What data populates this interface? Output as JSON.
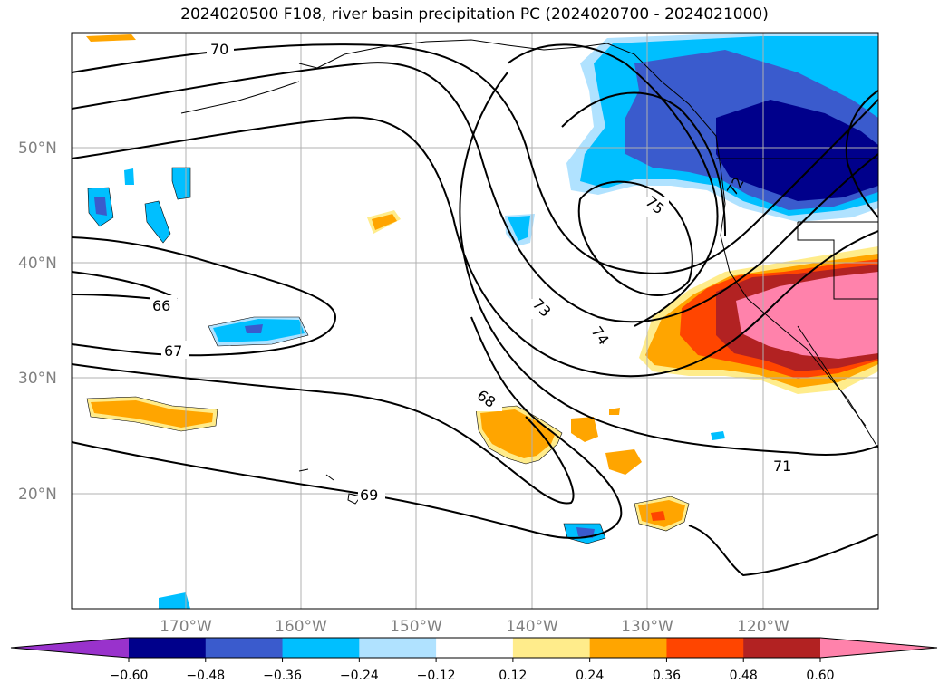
{
  "title": "2024020500 F108, river basin precipitation PC (2024020700 - 2024021000)",
  "lon_ticks": [
    "170°W",
    "160°W",
    "150°W",
    "140°W",
    "130°W",
    "120°W"
  ],
  "lat_ticks": [
    "50°N",
    "40°N",
    "30°N",
    "20°N"
  ],
  "contour_labels": [
    "66",
    "67",
    "68",
    "69",
    "70",
    "71",
    "72",
    "73",
    "74",
    "75"
  ],
  "colorbar": {
    "ticks": [
      "−0.60",
      "−0.48",
      "−0.36",
      "−0.24",
      "−0.12",
      "0.12",
      "0.24",
      "0.36",
      "0.48",
      "0.60"
    ],
    "colors": [
      "#9932cc",
      "#00008b",
      "#3a5bcd",
      "#00bfff",
      "#b0e2ff",
      "#ffffff",
      "#ffec8b",
      "#ffa500",
      "#ff4500",
      "#b22222",
      "#ff82ab"
    ]
  },
  "colors": {
    "grid": "#b0b0b0",
    "contour": "#000000",
    "tick_text": "#808080"
  }
}
